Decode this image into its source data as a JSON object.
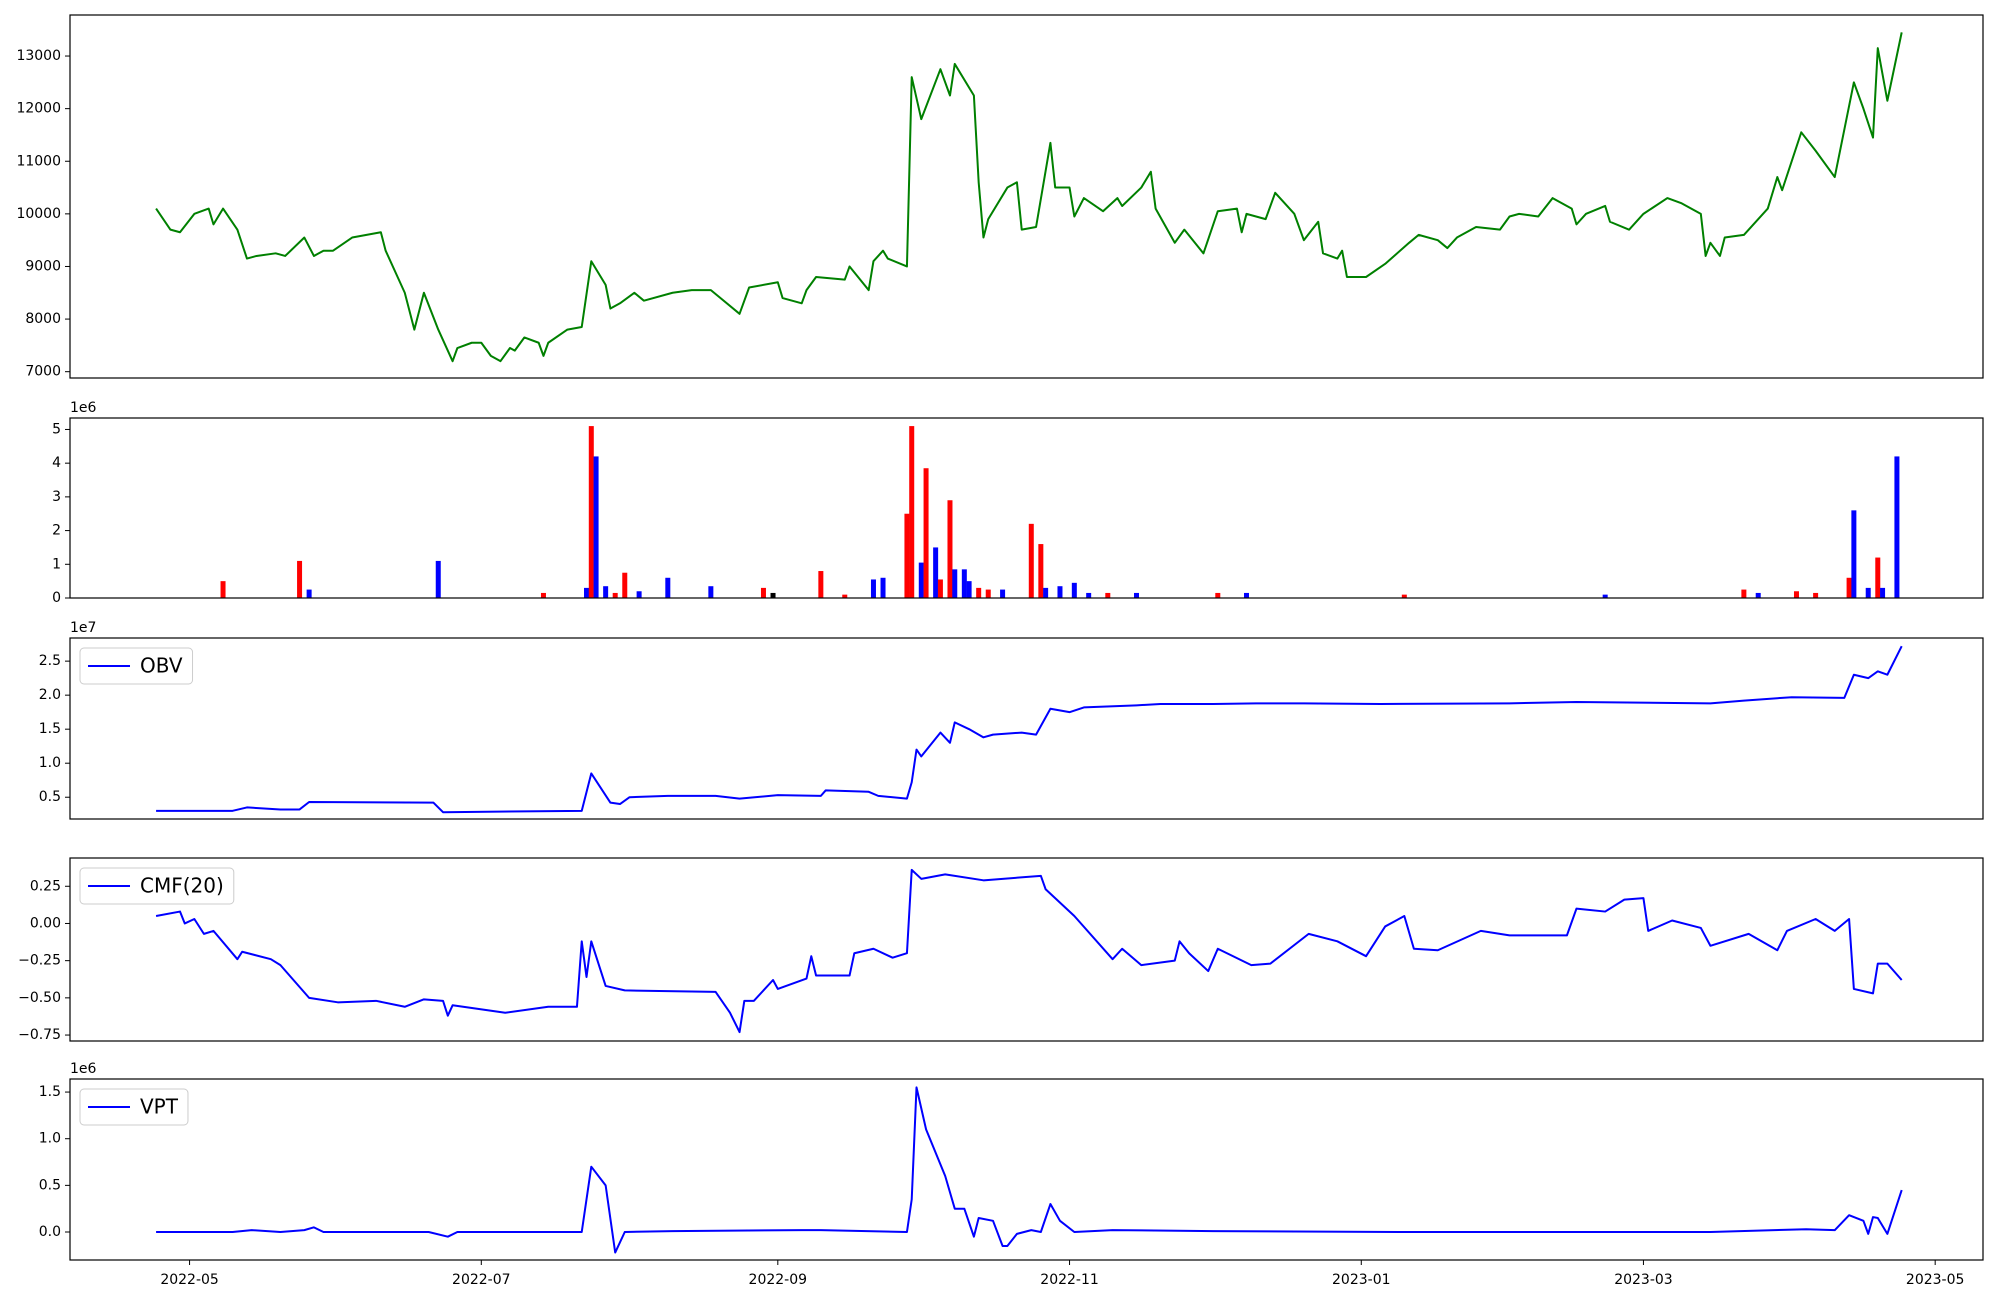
{
  "chart_data": [
    {
      "type": "line",
      "color": "#008000",
      "x": [
        "2022-04-24",
        "2022-04-27",
        "2022-04-29",
        "2022-05-02",
        "2022-05-05",
        "2022-05-06",
        "2022-05-08",
        "2022-05-11",
        "2022-05-13",
        "2022-05-15",
        "2022-05-19",
        "2022-05-21",
        "2022-05-25",
        "2022-05-27",
        "2022-05-29",
        "2022-05-31",
        "2022-06-04",
        "2022-06-10",
        "2022-06-11",
        "2022-06-15",
        "2022-06-17",
        "2022-06-19",
        "2022-06-22",
        "2022-06-25",
        "2022-06-26",
        "2022-06-29",
        "2022-07-01",
        "2022-07-03",
        "2022-07-05",
        "2022-07-07",
        "2022-07-08",
        "2022-07-10",
        "2022-07-13",
        "2022-07-14",
        "2022-07-15",
        "2022-07-19",
        "2022-07-22",
        "2022-07-24",
        "2022-07-27",
        "2022-07-28",
        "2022-07-30",
        "2022-08-02",
        "2022-08-04",
        "2022-08-10",
        "2022-08-14",
        "2022-08-18",
        "2022-08-20",
        "2022-08-24",
        "2022-08-26",
        "2022-09-01",
        "2022-09-02",
        "2022-09-06",
        "2022-09-07",
        "2022-09-09",
        "2022-09-15",
        "2022-09-16",
        "2022-09-20",
        "2022-09-21",
        "2022-09-23",
        "2022-09-24",
        "2022-09-28",
        "2022-09-29",
        "2022-10-01",
        "2022-10-05",
        "2022-10-07",
        "2022-10-08",
        "2022-10-12",
        "2022-10-13",
        "2022-10-14",
        "2022-10-15",
        "2022-10-19",
        "2022-10-21",
        "2022-10-22",
        "2022-10-25",
        "2022-10-28",
        "2022-10-29",
        "2022-11-01",
        "2022-11-02",
        "2022-11-04",
        "2022-11-08",
        "2022-11-11",
        "2022-11-12",
        "2022-11-16",
        "2022-11-18",
        "2022-11-19",
        "2022-11-23",
        "2022-11-25",
        "2022-11-29",
        "2022-12-02",
        "2022-12-06",
        "2022-12-07",
        "2022-12-08",
        "2022-12-12",
        "2022-12-14",
        "2022-12-18",
        "2022-12-20",
        "2022-12-23",
        "2022-12-24",
        "2022-12-27",
        "2022-12-28",
        "2022-12-29",
        "2023-01-02",
        "2023-01-06",
        "2023-01-11",
        "2023-01-13",
        "2023-01-17",
        "2023-01-19",
        "2023-01-21",
        "2023-01-25",
        "2023-01-30",
        "2023-02-01",
        "2023-02-03",
        "2023-02-07",
        "2023-02-10",
        "2023-02-14",
        "2023-02-15",
        "2023-02-17",
        "2023-02-21",
        "2023-02-22",
        "2023-02-26",
        "2023-03-01",
        "2023-03-06",
        "2023-03-09",
        "2023-03-13",
        "2023-03-14",
        "2023-03-15",
        "2023-03-17",
        "2023-03-18",
        "2023-03-22",
        "2023-03-23",
        "2023-03-27",
        "2023-03-29",
        "2023-03-30",
        "2023-04-03",
        "2023-04-06",
        "2023-04-10",
        "2023-04-14",
        "2023-04-16",
        "2023-04-18",
        "2023-04-19",
        "2023-04-21",
        "2023-04-24"
      ],
      "values": [
        10100,
        9700,
        9650,
        10000,
        10100,
        9800,
        10100,
        9700,
        9150,
        9200,
        9250,
        9200,
        9550,
        9200,
        9300,
        9300,
        9550,
        9650,
        9300,
        8500,
        7800,
        8500,
        7800,
        7200,
        7450,
        7550,
        7550,
        7300,
        7200,
        7450,
        7400,
        7650,
        7550,
        7300,
        7550,
        7800,
        7850,
        9100,
        8650,
        8200,
        8300,
        8500,
        8350,
        8500,
        8550,
        8550,
        8400,
        8100,
        8600,
        8700,
        8400,
        8300,
        8550,
        8800,
        8750,
        9000,
        8550,
        9100,
        9300,
        9150,
        9000,
        12600,
        11800,
        12750,
        12250,
        12850,
        12250,
        10600,
        9550,
        9900,
        10500,
        10600,
        9700,
        9750,
        11350,
        10500,
        10500,
        9950,
        10300,
        10050,
        10300,
        10150,
        10500,
        10800,
        10100,
        9450,
        9700,
        9250,
        10050,
        10100,
        9650,
        10000,
        9900,
        10400,
        10000,
        9500,
        9850,
        9250,
        9150,
        9300,
        8800,
        8800,
        9050,
        9450,
        9600,
        9500,
        9350,
        9550,
        9750,
        9700,
        9950,
        10000,
        9950,
        10300,
        10100,
        9800,
        10000,
        10150,
        9850,
        9700,
        10000,
        10300,
        10200,
        10000,
        9200,
        9450,
        9200,
        9550,
        9600,
        9700,
        10100,
        10700,
        10450,
        11550,
        11200,
        10700,
        12500,
        12000,
        11450,
        13150,
        12150,
        13450
      ],
      "xlim": [
        "2022-04-06",
        "2023-05-11"
      ],
      "ylim": [
        6880,
        13780
      ],
      "yticks": [
        7000,
        8000,
        9000,
        10000,
        11000,
        12000,
        13000
      ]
    },
    {
      "type": "bar",
      "y_offset_label": "1e6",
      "x": [
        "2022-05-08",
        "2022-05-24",
        "2022-05-26",
        "2022-06-22",
        "2022-07-14",
        "2022-07-23",
        "2022-07-24",
        "2022-07-25",
        "2022-07-27",
        "2022-07-29",
        "2022-07-31",
        "2022-08-03",
        "2022-08-09",
        "2022-08-18",
        "2022-08-29",
        "2022-08-31",
        "2022-09-10",
        "2022-09-15",
        "2022-09-21",
        "2022-09-23",
        "2022-09-28",
        "2022-09-29",
        "2022-10-01",
        "2022-10-02",
        "2022-10-04",
        "2022-10-05",
        "2022-10-07",
        "2022-10-08",
        "2022-10-10",
        "2022-10-11",
        "2022-10-13",
        "2022-10-15",
        "2022-10-18",
        "2022-10-24",
        "2022-10-26",
        "2022-10-27",
        "2022-10-30",
        "2022-11-02",
        "2022-11-05",
        "2022-11-09",
        "2022-11-15",
        "2022-12-02",
        "2022-12-08",
        "2023-01-10",
        "2023-02-21",
        "2023-03-22",
        "2023-03-25",
        "2023-04-02",
        "2023-04-06",
        "2023-04-13",
        "2023-04-14",
        "2023-04-17",
        "2023-04-19",
        "2023-04-20",
        "2023-04-23"
      ],
      "values": [
        0.5,
        1.1,
        0.25,
        1.1,
        0.15,
        0.3,
        5.1,
        4.2,
        0.35,
        0.15,
        0.75,
        0.2,
        0.6,
        0.35,
        0.3,
        0.15,
        0.8,
        0.1,
        0.55,
        0.6,
        2.5,
        5.1,
        1.05,
        3.85,
        1.5,
        0.55,
        2.9,
        0.85,
        0.85,
        0.5,
        0.3,
        0.25,
        0.25,
        2.2,
        1.6,
        0.3,
        0.35,
        0.45,
        0.15,
        0.15,
        0.15,
        0.15,
        0.15,
        0.1,
        0.1,
        0.25,
        0.15,
        0.2,
        0.15,
        0.6,
        2.6,
        0.3,
        1.2,
        0.3,
        4.2
      ],
      "colors": [
        "#ff0000",
        "#ff0000",
        "#0000ff",
        "#0000ff",
        "#ff0000",
        "#0000ff",
        "#ff0000",
        "#0000ff",
        "#0000ff",
        "#ff0000",
        "#ff0000",
        "#0000ff",
        "#0000ff",
        "#0000ff",
        "#ff0000",
        "#000000",
        "#ff0000",
        "#ff0000",
        "#0000ff",
        "#0000ff",
        "#ff0000",
        "#ff0000",
        "#0000ff",
        "#ff0000",
        "#0000ff",
        "#ff0000",
        "#ff0000",
        "#0000ff",
        "#0000ff",
        "#0000ff",
        "#ff0000",
        "#ff0000",
        "#0000ff",
        "#ff0000",
        "#ff0000",
        "#0000ff",
        "#0000ff",
        "#0000ff",
        "#0000ff",
        "#ff0000",
        "#0000ff",
        "#ff0000",
        "#0000ff",
        "#ff0000",
        "#0000ff",
        "#ff0000",
        "#0000ff",
        "#ff0000",
        "#ff0000",
        "#ff0000",
        "#0000ff",
        "#0000ff",
        "#ff0000",
        "#0000ff",
        "#0000ff"
      ],
      "xlim": [
        "2022-04-06",
        "2023-05-11"
      ],
      "ylim": [
        0,
        5.34
      ],
      "yticks": [
        0,
        1,
        2,
        3,
        4,
        5
      ]
    },
    {
      "type": "line",
      "y_offset_label": "1e7",
      "legend": "upper left",
      "x": [
        "2022-04-24",
        "2022-05-10",
        "2022-05-13",
        "2022-05-20",
        "2022-05-24",
        "2022-05-26",
        "2022-06-21",
        "2022-06-23",
        "2022-07-22",
        "2022-07-24",
        "2022-07-28",
        "2022-07-30",
        "2022-08-01",
        "2022-08-09",
        "2022-08-19",
        "2022-08-24",
        "2022-09-01",
        "2022-09-10",
        "2022-09-11",
        "2022-09-20",
        "2022-09-22",
        "2022-09-28",
        "2022-09-29",
        "2022-09-30",
        "2022-10-01",
        "2022-10-05",
        "2022-10-07",
        "2022-10-08",
        "2022-10-11",
        "2022-10-14",
        "2022-10-16",
        "2022-10-22",
        "2022-10-25",
        "2022-10-28",
        "2022-11-01",
        "2022-11-04",
        "2022-11-15",
        "2022-11-20",
        "2022-12-01",
        "2022-12-10",
        "2022-12-20",
        "2023-01-05",
        "2023-02-01",
        "2023-02-15",
        "2023-03-15",
        "2023-03-22",
        "2023-04-01",
        "2023-04-12",
        "2023-04-14",
        "2023-04-17",
        "2023-04-19",
        "2023-04-21",
        "2023-04-24"
      ],
      "series": [
        {
          "name": "OBV",
          "color": "#0000ff",
          "values": [
            0.3,
            0.3,
            0.35,
            0.32,
            0.32,
            0.43,
            0.42,
            0.28,
            0.3,
            0.85,
            0.42,
            0.4,
            0.5,
            0.52,
            0.52,
            0.48,
            0.53,
            0.52,
            0.6,
            0.58,
            0.52,
            0.48,
            0.72,
            1.2,
            1.1,
            1.45,
            1.3,
            1.6,
            1.5,
            1.38,
            1.42,
            1.45,
            1.42,
            1.8,
            1.75,
            1.82,
            1.85,
            1.87,
            1.87,
            1.88,
            1.88,
            1.87,
            1.88,
            1.9,
            1.88,
            1.92,
            1.97,
            1.96,
            2.3,
            2.25,
            2.35,
            2.3,
            2.72
          ]
        }
      ],
      "xlim": [
        "2022-04-06",
        "2023-05-11"
      ],
      "ylim": [
        0.18,
        2.84
      ],
      "yticks": [
        0.5,
        {
          "value": 1,
          "label": "1.0"
        },
        1.5,
        {
          "value": 2,
          "label": "2.0"
        },
        2.5
      ]
    },
    {
      "type": "line",
      "legend": "upper left",
      "x": [
        "2022-04-24",
        "2022-04-29",
        "2022-04-30",
        "2022-05-02",
        "2022-05-04",
        "2022-05-06",
        "2022-05-11",
        "2022-05-12",
        "2022-05-18",
        "2022-05-20",
        "2022-05-26",
        "2022-06-01",
        "2022-06-09",
        "2022-06-15",
        "2022-06-19",
        "2022-06-23",
        "2022-06-24",
        "2022-06-25",
        "2022-07-06",
        "2022-07-15",
        "2022-07-21",
        "2022-07-22",
        "2022-07-23",
        "2022-07-24",
        "2022-07-27",
        "2022-07-31",
        "2022-08-19",
        "2022-08-22",
        "2022-08-24",
        "2022-08-25",
        "2022-08-27",
        "2022-08-31",
        "2022-09-01",
        "2022-09-07",
        "2022-09-08",
        "2022-09-09",
        "2022-09-16",
        "2022-09-17",
        "2022-09-21",
        "2022-09-25",
        "2022-09-28",
        "2022-09-29",
        "2022-10-01",
        "2022-10-06",
        "2022-10-14",
        "2022-10-26",
        "2022-10-27",
        "2022-11-02",
        "2022-11-10",
        "2022-11-12",
        "2022-11-16",
        "2022-11-23",
        "2022-11-24",
        "2022-11-26",
        "2022-11-30",
        "2022-12-02",
        "2022-12-09",
        "2022-12-13",
        "2022-12-21",
        "2022-12-27",
        "2023-01-02",
        "2023-01-06",
        "2023-01-10",
        "2023-01-12",
        "2023-01-17",
        "2023-01-26",
        "2023-02-01",
        "2023-02-13",
        "2023-02-15",
        "2023-02-21",
        "2023-02-25",
        "2023-03-01",
        "2023-03-02",
        "2023-03-07",
        "2023-03-13",
        "2023-03-15",
        "2023-03-23",
        "2023-03-29",
        "2023-03-31",
        "2023-04-06",
        "2023-04-10",
        "2023-04-13",
        "2023-04-14",
        "2023-04-18",
        "2023-04-19",
        "2023-04-21",
        "2023-04-24"
      ],
      "series": [
        {
          "name": "CMF(20)",
          "color": "#0000ff",
          "values": [
            0.05,
            0.08,
            0.0,
            0.03,
            -0.07,
            -0.05,
            -0.24,
            -0.19,
            -0.24,
            -0.28,
            -0.5,
            -0.53,
            -0.52,
            -0.56,
            -0.51,
            -0.52,
            -0.62,
            -0.55,
            -0.6,
            -0.56,
            -0.56,
            -0.12,
            -0.36,
            -0.12,
            -0.42,
            -0.45,
            -0.46,
            -0.6,
            -0.73,
            -0.52,
            -0.52,
            -0.38,
            -0.44,
            -0.37,
            -0.22,
            -0.35,
            -0.35,
            -0.2,
            -0.17,
            -0.23,
            -0.2,
            0.36,
            0.3,
            0.33,
            0.29,
            0.32,
            0.23,
            0.05,
            -0.24,
            -0.17,
            -0.28,
            -0.25,
            -0.12,
            -0.2,
            -0.32,
            -0.17,
            -0.28,
            -0.27,
            -0.07,
            -0.12,
            -0.22,
            -0.02,
            0.05,
            -0.17,
            -0.18,
            -0.05,
            -0.08,
            -0.08,
            0.1,
            0.08,
            0.16,
            0.17,
            -0.05,
            0.02,
            -0.03,
            -0.15,
            -0.07,
            -0.18,
            -0.05,
            0.03,
            -0.05,
            0.03,
            -0.44,
            -0.47,
            -0.27,
            -0.27,
            -0.38
          ]
        }
      ],
      "xlim": [
        "2022-04-06",
        "2023-05-11"
      ],
      "ylim": [
        -0.79,
        0.44
      ],
      "yticks": [
        {
          "value": -0.75,
          "label": "−0.75"
        },
        {
          "value": -0.5,
          "label": "−0.50"
        },
        {
          "value": -0.25,
          "label": "−0.25"
        },
        {
          "value": 0,
          "label": "0.00"
        },
        0.25
      ]
    },
    {
      "type": "line",
      "y_offset_label": "1e6",
      "legend": "upper left",
      "x": [
        "2022-04-24",
        "2022-05-10",
        "2022-05-14",
        "2022-05-20",
        "2022-05-25",
        "2022-05-27",
        "2022-05-29",
        "2022-06-20",
        "2022-06-24",
        "2022-06-26",
        "2022-07-22",
        "2022-07-24",
        "2022-07-27",
        "2022-07-29",
        "2022-07-31",
        "2022-08-10",
        "2022-09-06",
        "2022-09-10",
        "2022-09-28",
        "2022-09-29",
        "2022-09-30",
        "2022-10-02",
        "2022-10-06",
        "2022-10-08",
        "2022-10-10",
        "2022-10-12",
        "2022-10-13",
        "2022-10-16",
        "2022-10-18",
        "2022-10-19",
        "2022-10-21",
        "2022-10-24",
        "2022-10-26",
        "2022-10-28",
        "2022-10-30",
        "2022-11-02",
        "2022-11-10",
        "2022-12-01",
        "2023-01-10",
        "2023-03-15",
        "2023-04-04",
        "2023-04-10",
        "2023-04-13",
        "2023-04-16",
        "2023-04-17",
        "2023-04-18",
        "2023-04-19",
        "2023-04-21",
        "2023-04-24"
      ],
      "series": [
        {
          "name": "VPT",
          "color": "#0000ff",
          "values": [
            0,
            0,
            0.02,
            0,
            0.02,
            0.05,
            0,
            0,
            -0.05,
            0,
            0,
            0.7,
            0.5,
            -0.22,
            0,
            0.01,
            0.02,
            0.02,
            0,
            0.35,
            1.55,
            1.1,
            0.6,
            0.25,
            0.25,
            -0.05,
            0.15,
            0.12,
            -0.15,
            -0.15,
            -0.02,
            0.02,
            0,
            0.3,
            0.12,
            0,
            0.02,
            0.01,
            0,
            0,
            0.03,
            0.02,
            0.18,
            0.12,
            -0.02,
            0.16,
            0.15,
            -0.02,
            0.45
          ]
        }
      ],
      "xlim": [
        "2022-04-06",
        "2023-05-11"
      ],
      "ylim": [
        -0.3,
        1.64
      ],
      "yticks": [
        {
          "value": 0,
          "label": "0.0"
        },
        0.5,
        {
          "value": 1,
          "label": "1.0"
        },
        1.5
      ],
      "xticks": [
        {
          "value": "2022-05-01",
          "label": "2022-05"
        },
        {
          "value": "2022-07-01",
          "label": "2022-07"
        },
        {
          "value": "2022-09-01",
          "label": "2022-09"
        },
        {
          "value": "2022-11-01",
          "label": "2022-11"
        },
        {
          "value": "2023-01-01",
          "label": "2023-01"
        },
        {
          "value": "2023-03-01",
          "label": "2023-03"
        },
        {
          "value": "2023-05-01",
          "label": "2023-05"
        }
      ]
    }
  ]
}
